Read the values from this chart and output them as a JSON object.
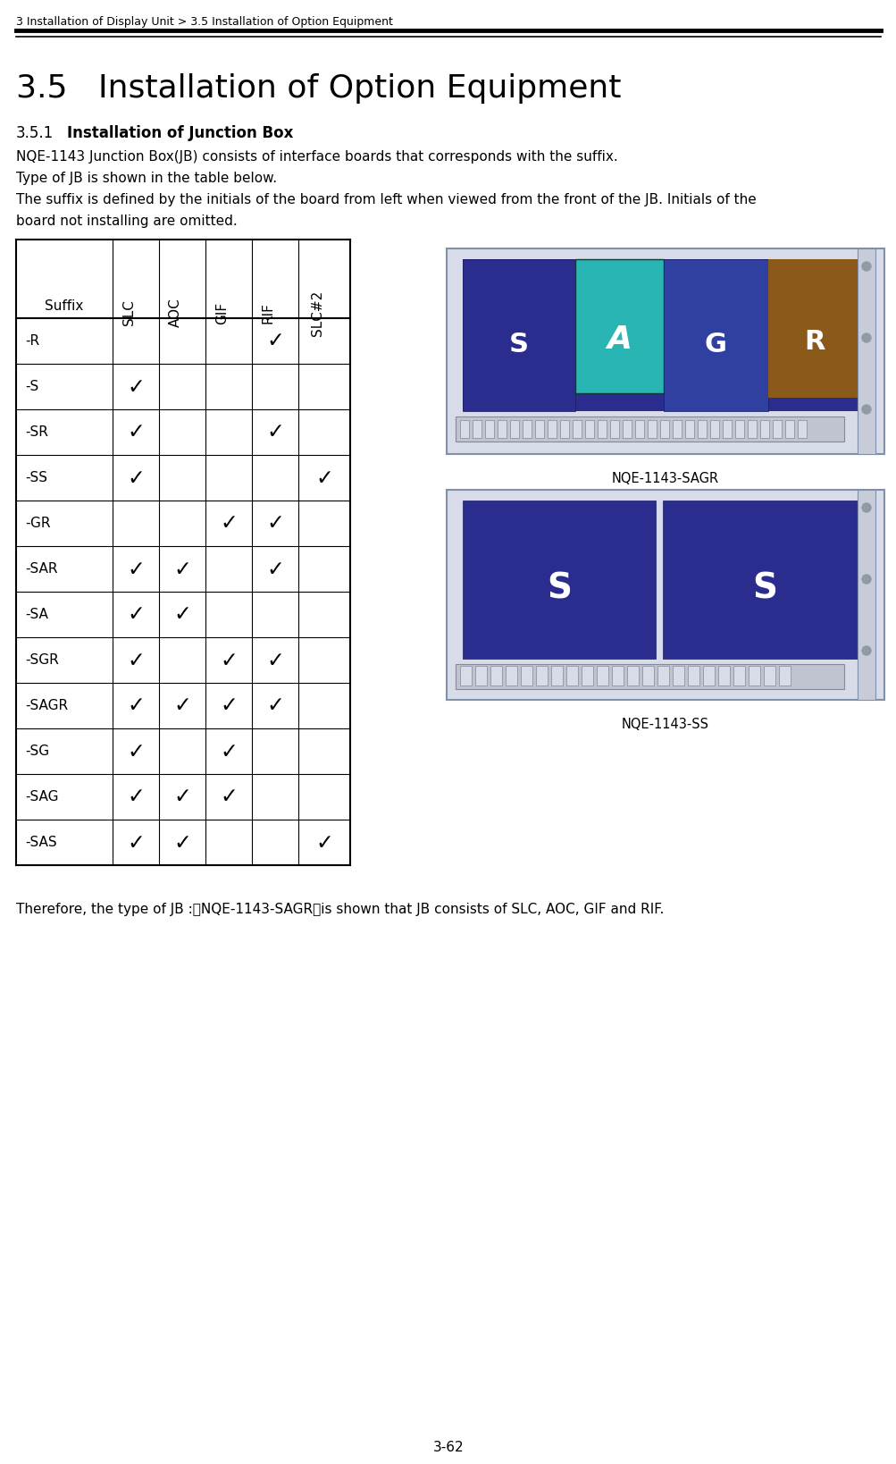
{
  "header_text": "3 Installation of Display Unit > 3.5 Installation of Option Equipment",
  "title": "3.5   Installation of Option Equipment",
  "subtitle_num": "3.5.1",
  "subtitle_label": "Installation of Junction Box",
  "paragraph1": "NQE-1143 Junction Box(JB) consists of interface boards that corresponds with the suffix.",
  "paragraph2": "Type of JB is shown in the table below.",
  "paragraph3": "The suffix is defined by the initials of the board from left when viewed from the front of the JB. Initials of the",
  "paragraph3b": "board not installing are omitted.",
  "table_columns": [
    "Suffix",
    "SLC",
    "AOC",
    "GIF",
    "RIF",
    "SLC#2"
  ],
  "table_rows": [
    [
      "-R",
      false,
      false,
      false,
      true,
      false
    ],
    [
      "-S",
      true,
      false,
      false,
      false,
      false
    ],
    [
      "-SR",
      true,
      false,
      false,
      true,
      false
    ],
    [
      "-SS",
      true,
      false,
      false,
      false,
      true
    ],
    [
      "-GR",
      false,
      false,
      true,
      true,
      false
    ],
    [
      "-SAR",
      true,
      true,
      false,
      true,
      false
    ],
    [
      "-SA",
      true,
      true,
      false,
      false,
      false
    ],
    [
      "-SGR",
      true,
      false,
      true,
      true,
      false
    ],
    [
      "-SAGR",
      true,
      true,
      true,
      true,
      false
    ],
    [
      "-SG",
      true,
      false,
      true,
      false,
      false
    ],
    [
      "-SAG",
      true,
      true,
      true,
      false,
      false
    ],
    [
      "-SAS",
      true,
      true,
      false,
      false,
      true
    ]
  ],
  "footer_text": "Therefore, the type of JB :『NQE-1143-SAGR』is shown that JB consists of SLC, AOC, GIF and RIF.",
  "page_number": "3-62",
  "img1_label": "NQE-1143-SAGR",
  "img2_label": "NQE-1143-SS",
  "bg": "#ffffff",
  "img1_bg": "#e8eaf0",
  "img2_bg": "#e8eaf0",
  "board_slc_color": "#2b2d8e",
  "board_aoc_color": "#2ab5b5",
  "board_gif_color": "#3a4a90",
  "board_rif_color": "#8b5a1a",
  "board_slc2_color": "#2b2d8e",
  "connector_color": "#c8ccd8",
  "frame_color": "#b0b8c8"
}
